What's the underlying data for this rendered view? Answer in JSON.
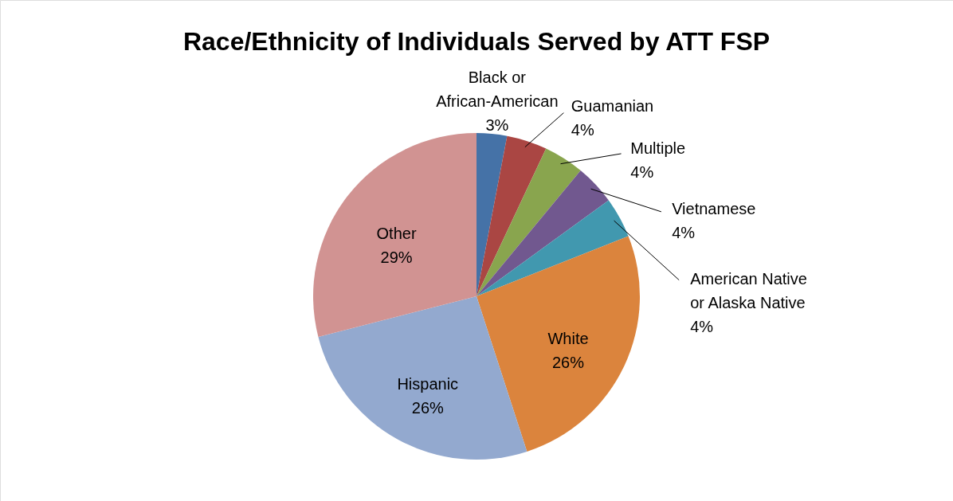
{
  "chart_data": {
    "type": "pie",
    "title": "Race/Ethnicity of Individuals Served by ATT FSP",
    "categories": [
      "Black or African-American",
      "Guamanian",
      "Multiple",
      "Vietnamese",
      "American Native or Alaska Native",
      "White",
      "Hispanic",
      "Other"
    ],
    "values": [
      3,
      4,
      4,
      4,
      4,
      26,
      26,
      29
    ],
    "value_labels": [
      "3%",
      "4%",
      "4%",
      "4%",
      "4%",
      "26%",
      "26%",
      "29%"
    ],
    "colors": [
      "#4572a7",
      "#aa4643",
      "#89a54e",
      "#71588f",
      "#4198af",
      "#db843d",
      "#93a9cf",
      "#d19392"
    ]
  }
}
